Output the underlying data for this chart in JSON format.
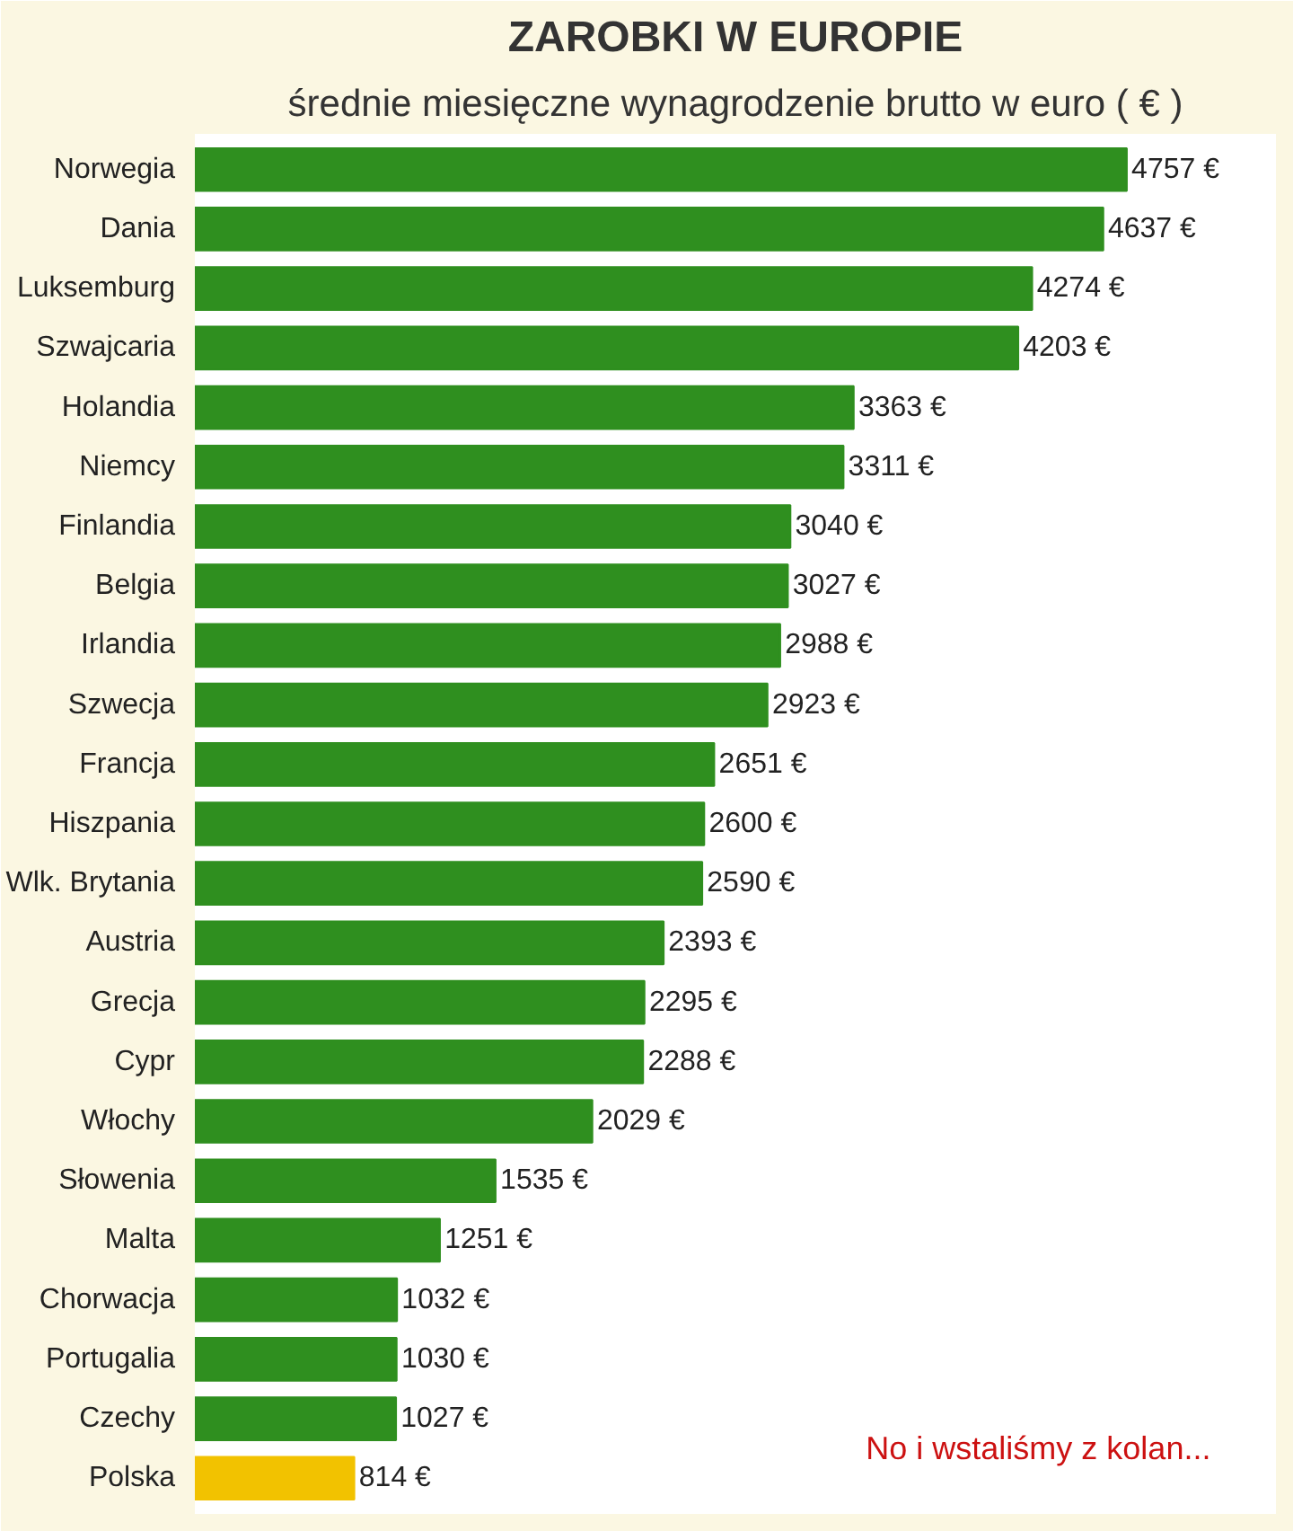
{
  "chart_data": {
    "type": "bar",
    "orientation": "horizontal",
    "title": "ZAROBKI W EUROPIE",
    "subtitle": "średnie miesięczne wynagrodzenie brutto w euro ( € )",
    "categories": [
      "Norwegia",
      "Dania",
      "Luksemburg",
      "Szwajcaria",
      "Holandia",
      "Niemcy",
      "Finlandia",
      "Belgia",
      "Irlandia",
      "Szwecja",
      "Francja",
      "Hiszpania",
      "Wlk. Brytania",
      "Austria",
      "Grecja",
      "Cypr",
      "Włochy",
      "Słowenia",
      "Malta",
      "Chorwacja",
      "Portugalia",
      "Czechy",
      "Polska"
    ],
    "values": [
      4757,
      4637,
      4274,
      4203,
      3363,
      3311,
      3040,
      3027,
      2988,
      2923,
      2651,
      2600,
      2590,
      2393,
      2295,
      2288,
      2029,
      1535,
      1251,
      1032,
      1030,
      1027,
      814
    ],
    "value_labels": [
      "4757 €",
      "4637 €",
      "4274 €",
      "4203 €",
      "3363 €",
      "3311 €",
      "3040 €",
      "3027 €",
      "2988 €",
      "2923 €",
      "2651 €",
      "2600 €",
      "2590 €",
      "2393 €",
      "2295 €",
      "2288 €",
      "2029 €",
      "1535 €",
      "1251 €",
      "1032 €",
      "1030 €",
      "1027 €",
      "814 €"
    ],
    "colors": [
      "#2f8f1f",
      "#2f8f1f",
      "#2f8f1f",
      "#2f8f1f",
      "#2f8f1f",
      "#2f8f1f",
      "#2f8f1f",
      "#2f8f1f",
      "#2f8f1f",
      "#2f8f1f",
      "#2f8f1f",
      "#2f8f1f",
      "#2f8f1f",
      "#2f8f1f",
      "#2f8f1f",
      "#2f8f1f",
      "#2f8f1f",
      "#2f8f1f",
      "#2f8f1f",
      "#2f8f1f",
      "#2f8f1f",
      "#2f8f1f",
      "#f2c200"
    ],
    "annotations": [
      "No i wstaliśmy z kolan..."
    ],
    "grid": false
  }
}
